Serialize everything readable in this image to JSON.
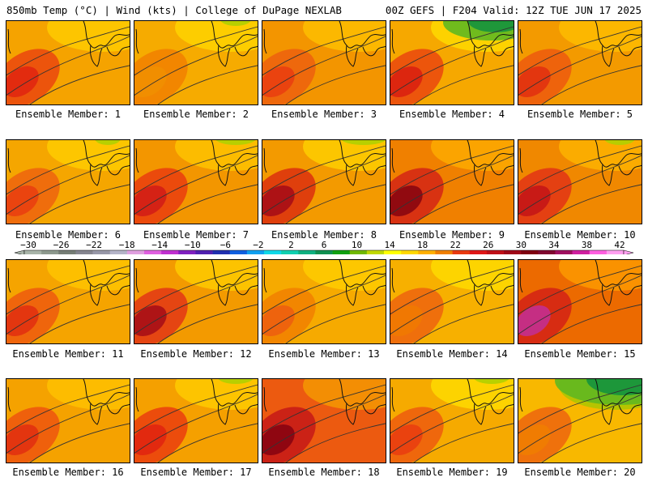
{
  "header": {
    "left": "850mb Temp (°C) | Wind (kts) | College of DuPage NEXLAB",
    "right": "00Z GEFS | F204 Valid: 12Z TUE JUN 17 2025"
  },
  "panels": [
    {
      "label": "Ensemble Member: 1",
      "base": "#f5a300",
      "hot": [
        "#e83a10",
        "#e02010"
      ],
      "cool": "#ffd000",
      "green": 0
    },
    {
      "label": "Ensemble Member: 2",
      "base": "#f6ab00",
      "hot": [
        "#f07a00",
        "#f09000"
      ],
      "cool": "#ffd800",
      "green": 0.3
    },
    {
      "label": "Ensemble Member: 3",
      "base": "#f39500",
      "hot": [
        "#ec5a10",
        "#e83a10"
      ],
      "cool": "#ffc400",
      "green": 0
    },
    {
      "label": "Ensemble Member: 4",
      "base": "#f6a800",
      "hot": [
        "#e83a10",
        "#d81a10"
      ],
      "cool": "#ffe000",
      "green": 1
    },
    {
      "label": "Ensemble Member: 5",
      "base": "#f39a00",
      "hot": [
        "#ec5010",
        "#e02a10"
      ],
      "cool": "#ffc000",
      "green": 0
    },
    {
      "label": "Ensemble Member: 6",
      "base": "#f5a600",
      "hot": [
        "#ec5a10",
        "#e83a10"
      ],
      "cool": "#ffd000",
      "green": 0.2
    },
    {
      "label": "Ensemble Member: 7",
      "base": "#f39600",
      "hot": [
        "#e83010",
        "#d01818"
      ],
      "cool": "#ffc800",
      "green": 0.5
    },
    {
      "label": "Ensemble Member: 8",
      "base": "#f39a00",
      "hot": [
        "#d82010",
        "#a00818"
      ],
      "cool": "#ffd400",
      "green": 0.6
    },
    {
      "label": "Ensemble Member: 9",
      "base": "#f08000",
      "hot": [
        "#d01818",
        "#800010"
      ],
      "cool": "#ffb000",
      "green": 0
    },
    {
      "label": "Ensemble Member: 10",
      "base": "#f08800",
      "hot": [
        "#e02818",
        "#c01018"
      ],
      "cool": "#ffb800",
      "green": 0.3
    },
    {
      "label": "Ensemble Member: 11",
      "base": "#f5a400",
      "hot": [
        "#ec5010",
        "#e02a10"
      ],
      "cool": "#ffc800",
      "green": 0
    },
    {
      "label": "Ensemble Member: 12",
      "base": "#f39a00",
      "hot": [
        "#e02818",
        "#a00818"
      ],
      "cool": "#ffd000",
      "green": 0
    },
    {
      "label": "Ensemble Member: 13",
      "base": "#f6aa00",
      "hot": [
        "#f07a00",
        "#ec5a10"
      ],
      "cool": "#ffd000",
      "green": 0
    },
    {
      "label": "Ensemble Member: 14",
      "base": "#f7b000",
      "hot": [
        "#ec5a10",
        "#f07a00"
      ],
      "cool": "#ffe000",
      "green": 0
    },
    {
      "label": "Ensemble Member: 15",
      "base": "#ec6a00",
      "hot": [
        "#d01818",
        "#c030a0"
      ],
      "cool": "#ffa000",
      "green": 0
    },
    {
      "label": "Ensemble Member: 16",
      "base": "#f5a200",
      "hot": [
        "#ec4a10",
        "#e02a10"
      ],
      "cool": "#ffc400",
      "green": 0
    },
    {
      "label": "Ensemble Member: 17",
      "base": "#f5a000",
      "hot": [
        "#e83010",
        "#e02010"
      ],
      "cool": "#ffd000",
      "green": 0.4
    },
    {
      "label": "Ensemble Member: 18",
      "base": "#ec5a10",
      "hot": [
        "#c01018",
        "#800010"
      ],
      "cool": "#f5a000",
      "green": 0
    },
    {
      "label": "Ensemble Member: 19",
      "base": "#f6aa00",
      "hot": [
        "#ec5010",
        "#e83a10"
      ],
      "cool": "#ffe000",
      "green": 0.4
    },
    {
      "label": "Ensemble Member: 20",
      "base": "#f8b800",
      "hot": [
        "#ec5a10",
        "#f08000"
      ],
      "cool": "#a0c800",
      "green": 2
    }
  ],
  "colorbar": {
    "labels": [
      "−30",
      "−26",
      "−22",
      "−18",
      "−14",
      "−10",
      "−6",
      "−2",
      "2",
      "6",
      "10",
      "14",
      "18",
      "22",
      "26",
      "30",
      "34",
      "38",
      "42"
    ],
    "colors": [
      "#a8b4a8",
      "#8e9a8e",
      "#767e76",
      "#868690",
      "#9898a8",
      "#b4b4c8",
      "#e0a0e0",
      "#e060e0",
      "#c030d0",
      "#8020c0",
      "#5020b0",
      "#2030b0",
      "#1060e0",
      "#10a0f0",
      "#10d8e8",
      "#10d0b0",
      "#10b080",
      "#109050",
      "#10a010",
      "#70b800",
      "#c0d800",
      "#ffff00",
      "#ffd800",
      "#ffb000",
      "#f08000",
      "#e83a10",
      "#e01818",
      "#c01018",
      "#a00818",
      "#800010",
      "#800830",
      "#a01060",
      "#d020a0",
      "#ff60e0",
      "#ffa0f0"
    ]
  }
}
